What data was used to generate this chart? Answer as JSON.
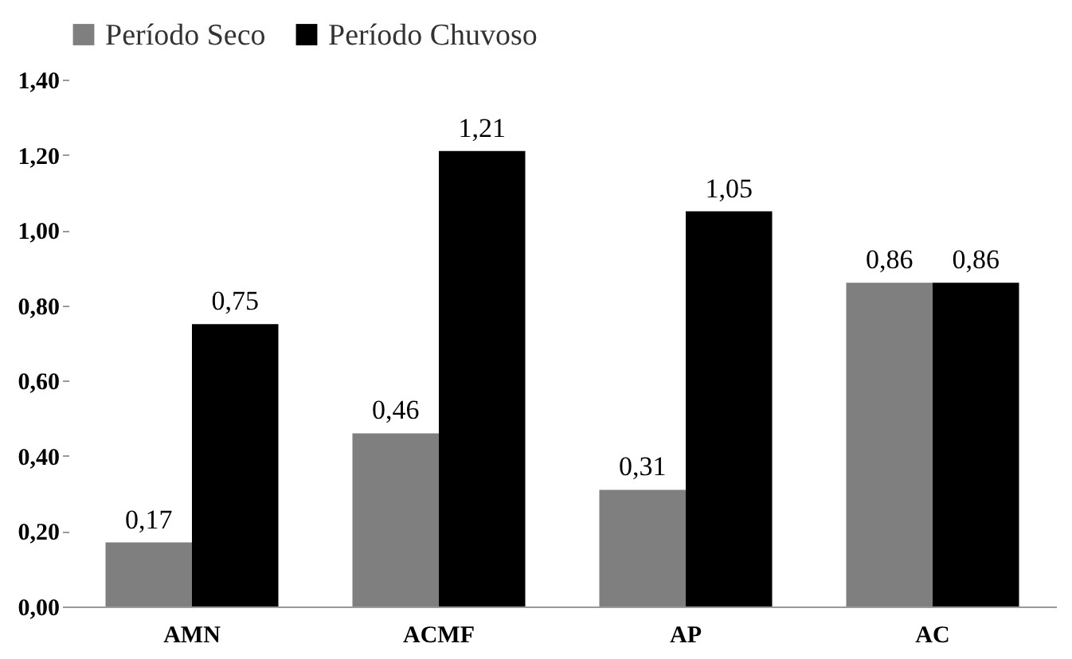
{
  "chart_data": {
    "type": "bar",
    "categories": [
      "AMN",
      "ACMF",
      "AP",
      "AC"
    ],
    "series": [
      {
        "name": "Período Seco",
        "color": "#7f7f7f",
        "values": [
          0.17,
          0.46,
          0.31,
          0.86
        ],
        "value_labels": [
          "0,17",
          "0,46",
          "0,31",
          "0,86"
        ]
      },
      {
        "name": "Período Chuvoso",
        "color": "#000000",
        "values": [
          0.75,
          1.21,
          1.05,
          0.86
        ],
        "value_labels": [
          "0,75",
          "1,21",
          "1,05",
          "0,86"
        ]
      }
    ],
    "ylim": [
      0,
      1.4
    ],
    "yticks": [
      {
        "value": 0,
        "label": "0,00"
      },
      {
        "value": 0.2,
        "label": "0,20"
      },
      {
        "value": 0.4,
        "label": "0,40"
      },
      {
        "value": 0.6,
        "label": "0,60"
      },
      {
        "value": 0.8,
        "label": "0,80"
      },
      {
        "value": 1.0,
        "label": "1,00"
      },
      {
        "value": 1.2,
        "label": "1,20"
      },
      {
        "value": 1.4,
        "label": "1,40"
      }
    ],
    "grid": false,
    "legend": "top"
  }
}
